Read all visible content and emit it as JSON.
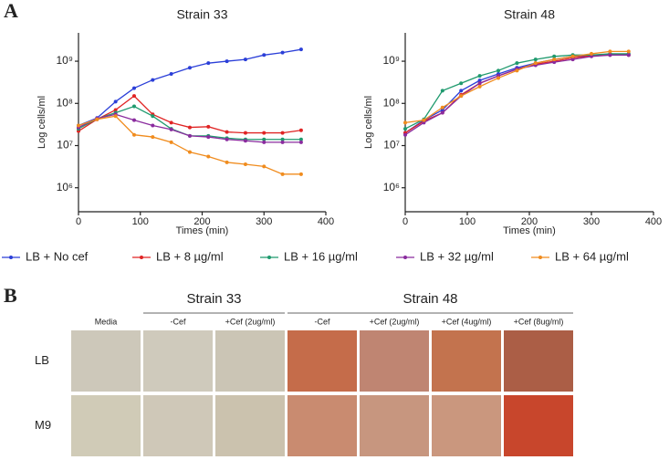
{
  "panel_a_label": "A",
  "chart_data": [
    {
      "type": "line",
      "title": "Strain 33",
      "x_label": "Times (min)",
      "y_label": "Log cells/ml",
      "log_y": true,
      "xlim": [
        0,
        400
      ],
      "xticks": [
        0,
        100,
        200,
        300,
        400
      ],
      "ylim": [
        270000,
        4700000000
      ],
      "yticks": [
        {
          "value": 1000000,
          "label": "10⁶"
        },
        {
          "value": 10000000,
          "label": "10⁷"
        },
        {
          "value": 100000000,
          "label": "10⁸"
        },
        {
          "value": 1000000000,
          "label": "10⁹"
        }
      ],
      "x": [
        0,
        30,
        60,
        90,
        120,
        150,
        180,
        210,
        240,
        270,
        300,
        330,
        360
      ],
      "series": [
        {
          "name": "LB + No cef",
          "color": "#2b3fd8",
          "values": [
            30000000,
            45000000,
            110000000,
            230000000,
            360000000,
            500000000,
            700000000,
            900000000,
            1000000000,
            1100000000,
            1400000000,
            1600000000,
            1900000000
          ]
        },
        {
          "name": "LB + 8 µg/ml",
          "color": "#e02424",
          "values": [
            22000000,
            42000000,
            70000000,
            150000000,
            55000000,
            35000000,
            27000000,
            28000000,
            21000000,
            20000000,
            20000000,
            20000000,
            23000000
          ]
        },
        {
          "name": "LB + 16 µg/ml",
          "color": "#1f9a6e",
          "values": [
            25000000,
            43000000,
            60000000,
            85000000,
            50000000,
            25000000,
            17000000,
            17000000,
            15000000,
            14000000,
            14000000,
            14000000,
            14000000
          ]
        },
        {
          "name": "LB + 32 µg/ml",
          "color": "#8a2b9e",
          "values": [
            27000000,
            44000000,
            55000000,
            40000000,
            30000000,
            24000000,
            17000000,
            16000000,
            14000000,
            13000000,
            12000000,
            12000000,
            12000000
          ]
        },
        {
          "name": "LB + 64 µg/ml",
          "color": "#f08c1e",
          "values": [
            30000000,
            42000000,
            50000000,
            18000000,
            16000000,
            12000000,
            7000000,
            5500000,
            4000000,
            3600000,
            3200000,
            2100000,
            2100000
          ]
        }
      ]
    },
    {
      "type": "line",
      "title": "Strain 48",
      "x_label": "Times (min)",
      "y_label": "Log cells/ml",
      "log_y": true,
      "xlim": [
        0,
        400
      ],
      "xticks": [
        0,
        100,
        200,
        300,
        400
      ],
      "ylim": [
        270000,
        4700000000
      ],
      "yticks": [
        {
          "value": 1000000,
          "label": "10⁶"
        },
        {
          "value": 10000000,
          "label": "10⁷"
        },
        {
          "value": 100000000,
          "label": "10⁸"
        },
        {
          "value": 1000000000,
          "label": "10⁹"
        }
      ],
      "x": [
        0,
        30,
        60,
        90,
        120,
        150,
        180,
        210,
        240,
        270,
        300,
        330,
        360
      ],
      "series": [
        {
          "name": "LB + No cef",
          "color": "#2b3fd8",
          "values": [
            20000000,
            40000000,
            70000000,
            200000000,
            350000000,
            500000000,
            700000000,
            900000000,
            1100000000,
            1300000000,
            1400000000,
            1400000000,
            1400000000
          ]
        },
        {
          "name": "LB + 8 µg/ml",
          "color": "#e02424",
          "values": [
            20000000,
            38000000,
            60000000,
            160000000,
            300000000,
            450000000,
            650000000,
            850000000,
            1000000000,
            1200000000,
            1350000000,
            1400000000,
            1400000000
          ]
        },
        {
          "name": "LB + 16 µg/ml",
          "color": "#1f9a6e",
          "values": [
            25000000,
            42000000,
            200000000,
            300000000,
            450000000,
            600000000,
            900000000,
            1100000000,
            1300000000,
            1400000000,
            1400000000,
            1500000000,
            1500000000
          ]
        },
        {
          "name": "LB + 32 µg/ml",
          "color": "#8a2b9e",
          "values": [
            18000000,
            35000000,
            60000000,
            150000000,
            300000000,
            450000000,
            650000000,
            800000000,
            950000000,
            1100000000,
            1300000000,
            1400000000,
            1400000000
          ]
        },
        {
          "name": "LB + 64 µg/ml",
          "color": "#f08c1e",
          "values": [
            35000000,
            40000000,
            80000000,
            150000000,
            250000000,
            400000000,
            600000000,
            900000000,
            1100000000,
            1300000000,
            1500000000,
            1700000000,
            1700000000
          ]
        }
      ]
    }
  ],
  "panel_b": {
    "label": "B",
    "groups": [
      "Strain 33",
      "Strain 48"
    ],
    "columns": [
      "Media",
      "-Cef",
      "+Cef (2ug/ml)",
      "-Cef",
      "+Cef (2ug/ml)",
      "+Cef (4ug/ml)",
      "+Cef (8ug/ml)"
    ],
    "rows": [
      "LB",
      "M9"
    ],
    "well_colors": [
      [
        "#cdc8ba",
        "#cfcabc",
        "#cbc5b5",
        "#c56c4a",
        "#bf8572",
        "#c3734e",
        "#ab5e46"
      ],
      [
        "#d0cbb7",
        "#cfc8b8",
        "#cbc2ae",
        "#c98b70",
        "#c7967f",
        "#ca977e",
        "#c8462c"
      ]
    ]
  }
}
